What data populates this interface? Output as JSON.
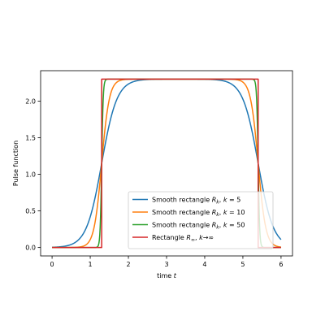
{
  "chart_data": {
    "type": "line",
    "title": "",
    "xlabel": "time",
    "xlabel_var": "t",
    "ylabel": "Pulse function",
    "xlim": [
      -0.3,
      6.3
    ],
    "ylim": [
      -0.115,
      2.415
    ],
    "xticks": [
      0,
      1,
      2,
      3,
      4,
      5,
      6
    ],
    "yticks": [
      0.0,
      0.5,
      1.0,
      1.5,
      2.0
    ],
    "ytick_labels": [
      "0.0",
      "0.5",
      "1.0",
      "1.5",
      "2.0"
    ],
    "grid": false,
    "legend_position": "lower-center",
    "pulse": {
      "amplitude": 2.3,
      "start": 1.3,
      "end": 5.4,
      "x_start": 0,
      "x_end": 6
    },
    "series": [
      {
        "kind": "smooth",
        "k": 5,
        "color": "#1f77b4",
        "legend": {
          "text": "Smooth rectangle ",
          "math": "R",
          "sub": "k",
          "after": ", ",
          "kvar": "k",
          "rel": " = 5"
        }
      },
      {
        "kind": "smooth",
        "k": 10,
        "color": "#ff7f0e",
        "legend": {
          "text": "Smooth rectangle ",
          "math": "R",
          "sub": "k",
          "after": ", ",
          "kvar": "k",
          "rel": " = 10"
        }
      },
      {
        "kind": "smooth",
        "k": 50,
        "color": "#2ca02c",
        "legend": {
          "text": "Smooth rectangle ",
          "math": "R",
          "sub": "k",
          "after": ", ",
          "kvar": "k",
          "rel": " = 50"
        }
      },
      {
        "kind": "rect",
        "color": "#d62728",
        "legend": {
          "text": "Rectangle ",
          "math": "R",
          "sub": "∞",
          "after": ", ",
          "kvar": "k",
          "rel": "→∞"
        }
      }
    ]
  }
}
